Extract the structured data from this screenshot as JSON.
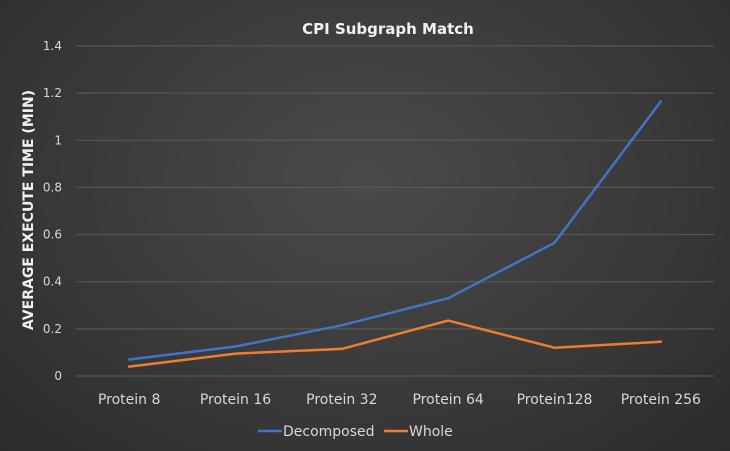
{
  "chart_data": {
    "type": "line",
    "title": "CPI Subgraph Match",
    "xlabel": "",
    "ylabel": "AVERAGE EXECUTE TIME (MIN)",
    "categories": [
      "Protein 8",
      "Protein 16",
      "Protein 32",
      "Protein 64",
      "Protein128",
      "Protein 256"
    ],
    "ylim": [
      0,
      1.4
    ],
    "yticks": [
      "0",
      "0.2",
      "0.4",
      "0.6",
      "0.8",
      "1",
      "1.2",
      "1.4"
    ],
    "grid": true,
    "legend": "bottom",
    "series": [
      {
        "name": "Decomposed",
        "color": "#4472c4",
        "values": [
          0.07,
          0.125,
          0.215,
          0.33,
          0.565,
          1.165
        ]
      },
      {
        "name": "Whole",
        "color": "#ed7d31",
        "values": [
          0.04,
          0.095,
          0.115,
          0.235,
          0.12,
          0.145
        ]
      }
    ]
  }
}
